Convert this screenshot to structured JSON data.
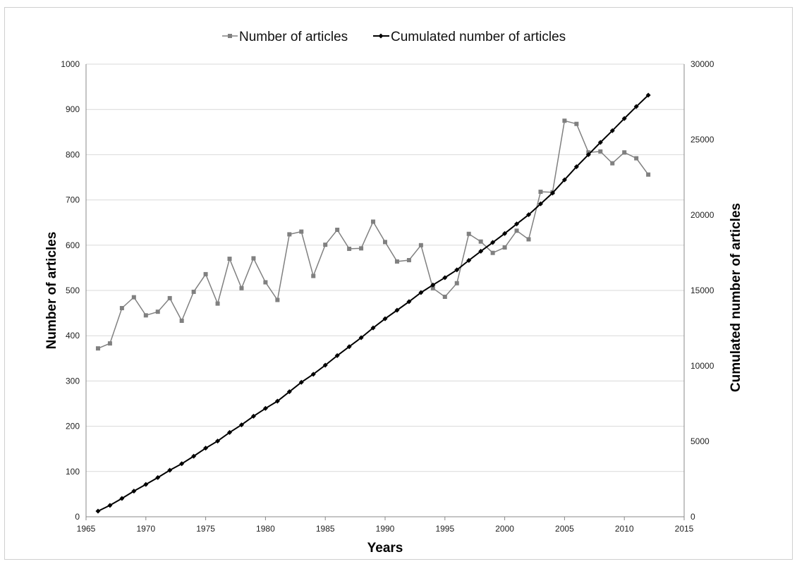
{
  "chart_data": {
    "type": "line",
    "xlabel": "Years",
    "ylabel": "Number of articles",
    "y2label": "Cumulated number of articles",
    "xlim": [
      1965,
      2015
    ],
    "ylim": [
      0,
      1000
    ],
    "y2lim": [
      0,
      30000
    ],
    "x_ticks": [
      1965,
      1970,
      1975,
      1980,
      1985,
      1990,
      1995,
      2000,
      2005,
      2010,
      2015
    ],
    "y_ticks": [
      0,
      100,
      200,
      300,
      400,
      500,
      600,
      700,
      800,
      900,
      1000
    ],
    "y2_ticks": [
      0,
      5000,
      10000,
      15000,
      20000,
      25000,
      30000
    ],
    "grid": true,
    "legend_position": "top-center",
    "x": [
      1966,
      1967,
      1968,
      1969,
      1970,
      1971,
      1972,
      1973,
      1974,
      1975,
      1976,
      1977,
      1978,
      1979,
      1980,
      1981,
      1982,
      1983,
      1984,
      1985,
      1986,
      1987,
      1988,
      1989,
      1990,
      1991,
      1992,
      1993,
      1994,
      1995,
      1996,
      1997,
      1998,
      1999,
      2000,
      2001,
      2002,
      2003,
      2004,
      2005,
      2006,
      2007,
      2008,
      2009,
      2010,
      2011,
      2012
    ],
    "series": [
      {
        "name": "Number of articles",
        "axis": "left",
        "color": "#808080",
        "marker": "square",
        "values": [
          372,
          383,
          461,
          485,
          445,
          453,
          483,
          433,
          497,
          536,
          471,
          570,
          505,
          571,
          518,
          479,
          624,
          630,
          532,
          601,
          634,
          592,
          593,
          652,
          607,
          564,
          567,
          600,
          505,
          486,
          516,
          625,
          608,
          583,
          595,
          632,
          613,
          718,
          717,
          875,
          868,
          805,
          807,
          781,
          805,
          792,
          756
        ]
      },
      {
        "name": "Cumulated number of articles",
        "axis": "right",
        "color": "#000000",
        "marker": "diamond",
        "values": [
          372,
          755,
          1216,
          1701,
          2146,
          2599,
          3082,
          3515,
          4012,
          4548,
          5019,
          5589,
          6094,
          6665,
          7183,
          7662,
          8286,
          8916,
          9448,
          10049,
          10683,
          11275,
          11868,
          12520,
          13127,
          13691,
          14258,
          14858,
          15363,
          15849,
          16365,
          16990,
          17598,
          18181,
          18776,
          19408,
          20021,
          20739,
          21456,
          22331,
          23199,
          24004,
          24811,
          25592,
          26397,
          27189,
          27945
        ]
      }
    ]
  }
}
